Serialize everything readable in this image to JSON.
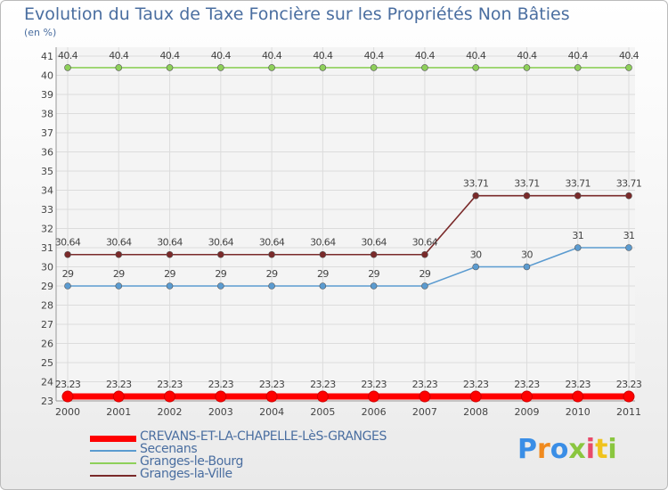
{
  "title": "Evolution du Taux de Taxe Foncière sur les Propriétés Non Bâties",
  "unit_label": "(en %)",
  "logo": {
    "text": "Proxiti",
    "colors": [
      "#3a8ee6",
      "#f08a1e",
      "#3a8ee6",
      "#8ac63f",
      "#e84a6a",
      "#f0c31e",
      "#8ac63f"
    ]
  },
  "chart_data": {
    "type": "line",
    "x": [
      "2000",
      "2001",
      "2002",
      "2003",
      "2004",
      "2005",
      "2006",
      "2007",
      "2008",
      "2009",
      "2010",
      "2011"
    ],
    "ylim": [
      23,
      41
    ],
    "yticks": [
      23,
      24,
      25,
      26,
      27,
      28,
      29,
      30,
      31,
      32,
      33,
      34,
      35,
      36,
      37,
      38,
      39,
      40,
      41
    ],
    "grid": true,
    "legend_position": "bottom-left",
    "series": [
      {
        "name": "CREVANS-ET-LA-CHAPELLE-LèS-GRANGES",
        "color": "#ff0000",
        "values": [
          23.23,
          23.23,
          23.23,
          23.23,
          23.23,
          23.23,
          23.23,
          23.23,
          23.23,
          23.23,
          23.23,
          23.23
        ],
        "labels": [
          "23.23",
          "23.23",
          "23.23",
          "23.23",
          "23.23",
          "23.23",
          "23.23",
          "23.23",
          "23.23",
          "23.23",
          "23.23",
          "23.23"
        ]
      },
      {
        "name": "Secenans",
        "color": "#5b9bd0",
        "values": [
          29,
          29,
          29,
          29,
          29,
          29,
          29,
          29,
          30,
          30,
          31,
          31
        ],
        "labels": [
          "29",
          "29",
          "29",
          "29",
          "29",
          "29",
          "29",
          "29",
          "30",
          "30",
          "31",
          "31"
        ]
      },
      {
        "name": "Granges-le-Bourg",
        "color": "#8ed05a",
        "values": [
          40.4,
          40.4,
          40.4,
          40.4,
          40.4,
          40.4,
          40.4,
          40.4,
          40.4,
          40.4,
          40.4,
          40.4
        ],
        "labels": [
          "40.4",
          "40.4",
          "40.4",
          "40.4",
          "40.4",
          "40.4",
          "40.4",
          "40.4",
          "40.4",
          "40.4",
          "40.4",
          "40.4"
        ]
      },
      {
        "name": "Granges-la-Ville",
        "color": "#7a2a2a",
        "values": [
          30.64,
          30.64,
          30.64,
          30.64,
          30.64,
          30.64,
          30.64,
          30.64,
          33.71,
          33.71,
          33.71,
          33.71
        ],
        "labels": [
          "30.64",
          "30.64",
          "30.64",
          "30.64",
          "30.64",
          "30.64",
          "30.64",
          "30.64",
          "33.71",
          "33.71",
          "33.71",
          "33.71"
        ]
      }
    ]
  }
}
